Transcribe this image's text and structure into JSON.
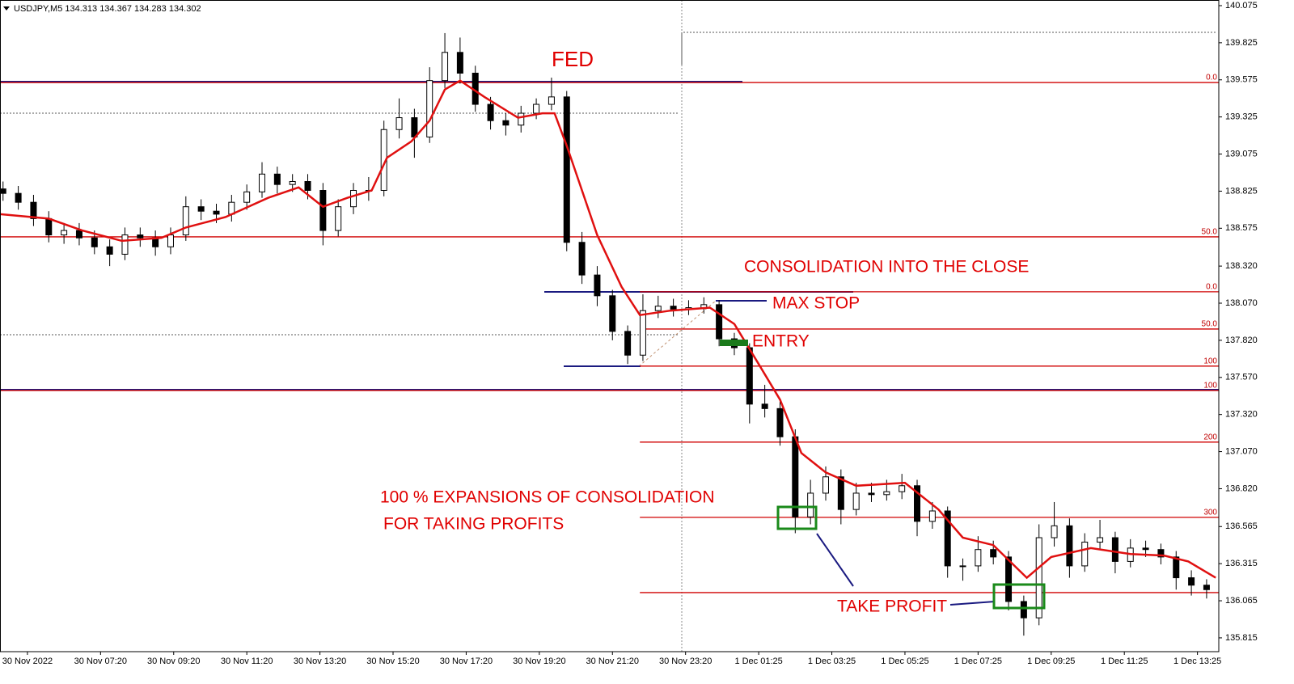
{
  "chart_data": {
    "type": "candlestick",
    "title": "USDJPY,M5  134.313 134.367 134.283 134.302",
    "xlim": [
      -9,
      391
    ],
    "ylim": [
      135.722,
      140.113
    ],
    "xticks": [
      {
        "value": 0,
        "label": "30 Nov 2022"
      },
      {
        "value": 24,
        "label": "30 Nov 07:20"
      },
      {
        "value": 48,
        "label": "30 Nov 09:20"
      },
      {
        "value": 72,
        "label": "30 Nov 11:20"
      },
      {
        "value": 96,
        "label": "30 Nov 13:20"
      },
      {
        "value": 120,
        "label": "30 Nov 15:20"
      },
      {
        "value": 144,
        "label": "30 Nov 17:20"
      },
      {
        "value": 168,
        "label": "30 Nov 19:20"
      },
      {
        "value": 192,
        "label": "30 Nov 21:20"
      },
      {
        "value": 216,
        "label": "30 Nov 23:20"
      },
      {
        "value": 240,
        "label": "1 Dec 01:25"
      },
      {
        "value": 264,
        "label": "1 Dec 03:25"
      },
      {
        "value": 288,
        "label": "1 Dec 05:25"
      },
      {
        "value": 312,
        "label": "1 Dec 07:25"
      },
      {
        "value": 336,
        "label": "1 Dec 09:25"
      },
      {
        "value": 360,
        "label": "1 Dec 11:25"
      },
      {
        "value": 384,
        "label": "1 Dec 13:25"
      }
    ],
    "yticks": [
      140.075,
      139.825,
      139.575,
      139.325,
      139.075,
      138.825,
      138.575,
      {
        "value": 138.32,
        "label": "138.320"
      },
      {
        "value": 138.07,
        "label": "138.070"
      },
      {
        "value": 137.82,
        "label": "137.820"
      },
      {
        "value": 137.57,
        "label": "137.570"
      },
      {
        "value": 137.32,
        "label": "137.320"
      },
      {
        "value": 137.07,
        "label": "137.070"
      },
      {
        "value": 136.82,
        "label": "136.820"
      },
      136.565,
      136.315,
      136.065,
      135.815
    ],
    "up_color": "#ffffff",
    "down_color": "#000000",
    "x": [
      -8,
      -3,
      2,
      7,
      12,
      17,
      22,
      27,
      32,
      37,
      42,
      47,
      52,
      57,
      62,
      67,
      72,
      77,
      82,
      87,
      92,
      97,
      102,
      107,
      112,
      117,
      122,
      127,
      132,
      137,
      142,
      147,
      152,
      157,
      162,
      167,
      172,
      177,
      182,
      187,
      192,
      197,
      202,
      207,
      212,
      217,
      222,
      227,
      232,
      237,
      242,
      247,
      252,
      257,
      262,
      267,
      272,
      277,
      282,
      287,
      292,
      297,
      302,
      307,
      312,
      317,
      322,
      327,
      332,
      337,
      342,
      347,
      352,
      357,
      362,
      367,
      372,
      377,
      382,
      387
    ],
    "open": [
      138.84,
      138.81,
      138.75,
      138.64,
      138.53,
      138.56,
      138.51,
      138.45,
      138.4,
      138.53,
      138.51,
      138.45,
      138.53,
      138.72,
      138.69,
      138.67,
      138.75,
      138.82,
      138.94,
      138.87,
      138.89,
      138.83,
      138.56,
      138.72,
      138.83,
      138.83,
      139.24,
      139.32,
      139.19,
      139.57,
      139.76,
      139.62,
      139.41,
      139.3,
      139.27,
      139.35,
      139.41,
      139.46,
      138.48,
      138.26,
      138.12,
      137.88,
      137.72,
      138.02,
      138.05,
      138.03,
      138.04,
      138.06,
      137.83,
      137.77,
      137.39,
      137.36,
      137.17,
      136.63,
      136.79,
      136.9,
      136.68,
      136.79,
      136.78,
      136.8,
      136.84,
      136.6,
      136.67,
      136.3,
      136.3,
      136.41,
      136.36,
      136.06,
      135.95,
      136.49,
      136.57,
      136.3,
      136.46,
      136.49,
      136.33,
      136.42,
      136.41,
      136.36,
      136.22,
      136.17
    ],
    "high": [
      138.89,
      138.86,
      138.8,
      138.69,
      138.61,
      138.61,
      138.56,
      138.5,
      138.58,
      138.58,
      138.56,
      138.58,
      138.79,
      138.77,
      138.74,
      138.8,
      138.87,
      139.02,
      138.99,
      138.94,
      138.94,
      138.88,
      138.77,
      138.88,
      138.92,
      139.3,
      139.45,
      139.38,
      139.66,
      139.89,
      139.86,
      139.67,
      139.46,
      139.35,
      139.4,
      139.45,
      139.59,
      139.5,
      138.55,
      138.32,
      138.16,
      137.92,
      138.13,
      138.12,
      138.1,
      138.09,
      138.11,
      138.09,
      137.87,
      137.8,
      137.52,
      137.42,
      137.22,
      136.88,
      136.97,
      136.95,
      136.86,
      136.86,
      136.88,
      136.92,
      136.88,
      136.73,
      136.7,
      136.35,
      136.5,
      136.47,
      136.4,
      136.1,
      136.58,
      136.73,
      136.62,
      136.52,
      136.61,
      136.53,
      136.48,
      136.47,
      136.45,
      136.4,
      136.27,
      136.21
    ],
    "low": [
      138.76,
      138.7,
      138.59,
      138.48,
      138.47,
      138.46,
      138.4,
      138.32,
      138.36,
      138.45,
      138.39,
      138.4,
      138.49,
      138.63,
      138.61,
      138.62,
      138.7,
      138.78,
      138.81,
      138.82,
      138.77,
      138.46,
      138.52,
      138.67,
      138.76,
      138.79,
      139.18,
      139.05,
      139.15,
      139.52,
      139.55,
      139.36,
      139.24,
      139.2,
      139.22,
      139.31,
      139.37,
      138.42,
      138.2,
      138.05,
      137.82,
      137.66,
      137.68,
      137.97,
      137.98,
      137.99,
      138.0,
      137.78,
      137.72,
      137.26,
      137.3,
      137.11,
      136.52,
      136.58,
      136.74,
      136.58,
      136.64,
      136.73,
      136.74,
      136.75,
      136.5,
      136.55,
      136.22,
      136.2,
      136.26,
      136.31,
      136.0,
      135.83,
      135.9,
      136.43,
      136.22,
      136.26,
      136.41,
      136.25,
      136.29,
      136.36,
      136.31,
      136.14,
      136.1,
      136.08
    ],
    "close": [
      138.81,
      138.75,
      138.64,
      138.53,
      138.56,
      138.51,
      138.45,
      138.4,
      138.53,
      138.51,
      138.45,
      138.53,
      138.72,
      138.69,
      138.67,
      138.75,
      138.82,
      138.94,
      138.87,
      138.89,
      138.83,
      138.56,
      138.72,
      138.83,
      138.83,
      139.24,
      139.32,
      139.19,
      139.57,
      139.76,
      139.62,
      139.41,
      139.3,
      139.27,
      139.35,
      139.41,
      139.46,
      138.48,
      138.26,
      138.12,
      137.88,
      137.72,
      138.02,
      138.05,
      138.03,
      138.04,
      138.06,
      137.83,
      137.77,
      137.39,
      137.36,
      137.17,
      136.63,
      136.79,
      136.9,
      136.68,
      136.79,
      136.78,
      136.8,
      136.84,
      136.6,
      136.67,
      136.3,
      136.3,
      136.41,
      136.36,
      136.06,
      135.95,
      136.49,
      136.57,
      136.3,
      136.46,
      136.49,
      136.33,
      136.42,
      136.41,
      136.36,
      136.22,
      136.17,
      136.14
    ],
    "moving_average": {
      "color": "#e01010",
      "x": [
        -9,
        7,
        18,
        31,
        44,
        52,
        65,
        79,
        89,
        97,
        105,
        113,
        118,
        126,
        132,
        137,
        142,
        150,
        161,
        169,
        173,
        177,
        187,
        195,
        201,
        211,
        224,
        232,
        240,
        247,
        254,
        262,
        272,
        288,
        299,
        307,
        317,
        328,
        336,
        349,
        362,
        373,
        381,
        390
      ],
      "values": [
        138.67,
        138.64,
        138.56,
        138.49,
        138.51,
        138.58,
        138.65,
        138.78,
        138.85,
        138.72,
        138.78,
        138.83,
        139.05,
        139.16,
        139.3,
        139.51,
        139.57,
        139.46,
        139.32,
        139.35,
        139.35,
        139.13,
        138.53,
        138.18,
        137.99,
        138.02,
        138.04,
        137.93,
        137.66,
        137.42,
        137.06,
        136.93,
        136.84,
        136.86,
        136.68,
        136.49,
        136.44,
        136.22,
        136.36,
        136.42,
        136.38,
        136.37,
        136.33,
        136.22
      ]
    },
    "fib_color": "#d00000",
    "fib_levels": [
      {
        "value": 139.557,
        "label": "0.0",
        "start": -9
      },
      {
        "value": 138.517,
        "label": "50.0",
        "start": -9
      },
      {
        "value": 137.482,
        "label": "100",
        "start": -9
      },
      {
        "value": 138.147,
        "label": "0.0",
        "start": 201
      },
      {
        "value": 137.896,
        "label": "50.0",
        "start": 201
      },
      {
        "value": 137.646,
        "label": "100",
        "start": 201
      },
      {
        "value": 137.134,
        "label": "200",
        "start": 201
      },
      {
        "value": 136.627,
        "label": "300",
        "start": 201
      },
      {
        "value": 136.12,
        "start": 201
      }
    ],
    "annotations": [
      "FED",
      "CONSOLIDATION INTO THE CLOSE",
      "MAX STOP",
      "ENTRY",
      "100 % EXPANSIONS OF CONSOLIDATION",
      "FOR TAKING PROFITS",
      "TAKE PROFIT"
    ]
  }
}
